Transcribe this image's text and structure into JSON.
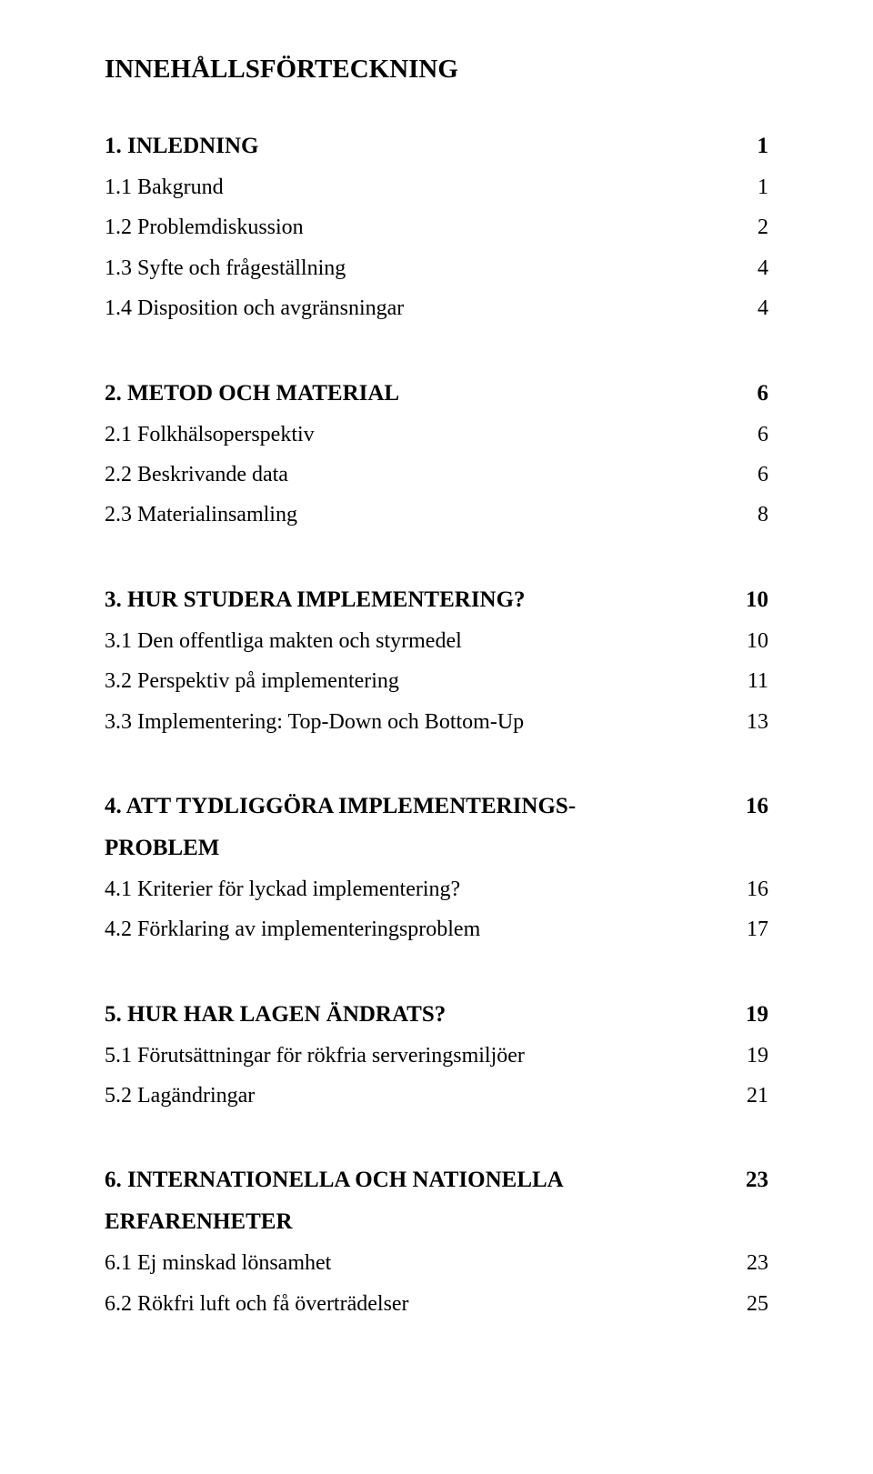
{
  "title": "INNEHÅLLSFÖRTECKNING",
  "sections": [
    {
      "label": "1.  INLEDNING",
      "page": "1",
      "continuation": null,
      "subs": [
        {
          "label": "1.1  Bakgrund",
          "page": "1"
        },
        {
          "label": "1.2  Problemdiskussion",
          "page": "2"
        },
        {
          "label": "1.3  Syfte och frågeställning",
          "page": "4"
        },
        {
          "label": "1.4  Disposition och avgränsningar",
          "page": "4"
        }
      ]
    },
    {
      "label": "2.  METOD OCH MATERIAL",
      "page": "6",
      "continuation": null,
      "subs": [
        {
          "label": "2.1  Folkhälsoperspektiv",
          "page": "6"
        },
        {
          "label": "2.2  Beskrivande data",
          "page": "6"
        },
        {
          "label": "2.3  Materialinsamling",
          "page": "8"
        }
      ]
    },
    {
      "label": "3.  HUR STUDERA IMPLEMENTERING?",
      "page": "10",
      "continuation": null,
      "subs": [
        {
          "label": "3.1  Den offentliga makten och styrmedel",
          "page": "10"
        },
        {
          "label": "3.2  Perspektiv på implementering",
          "page": "11"
        },
        {
          "label": "3.3  Implementering: Top-Down och Bottom-Up",
          "page": "13"
        }
      ]
    },
    {
      "label": "4.  ATT TYDLIGGÖRA IMPLEMENTERINGS-",
      "page": "16",
      "continuation": "PROBLEM",
      "subs": [
        {
          "label": "4.1  Kriterier för lyckad implementering?",
          "page": "16"
        },
        {
          "label": "4.2  Förklaring av implementeringsproblem",
          "page": "17"
        }
      ]
    },
    {
      "label": "5.  HUR HAR LAGEN ÄNDRATS?",
      "page": "19",
      "continuation": null,
      "subs": [
        {
          "label": "5.1  Förutsättningar för rökfria serveringsmiljöer",
          "page": "19"
        },
        {
          "label": "5.2  Lagändringar",
          "page": "21"
        }
      ]
    },
    {
      "label": "6.  INTERNATIONELLA OCH NATIONELLA",
      "page": "23",
      "continuation": "ERFARENHETER",
      "subs": [
        {
          "label": "6.1  Ej minskad lönsamhet",
          "page": "23"
        },
        {
          "label": "6.2  Rökfri luft och få överträdelser",
          "page": "25"
        }
      ]
    }
  ]
}
